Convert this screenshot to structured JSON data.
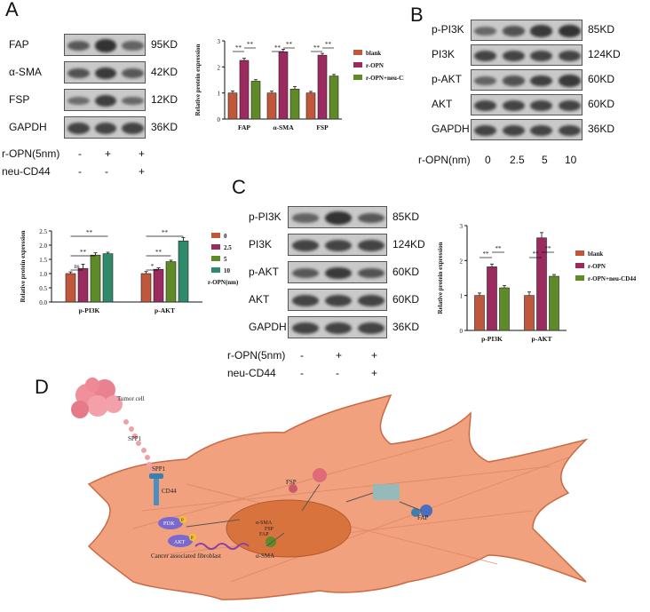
{
  "panels": {
    "A": "A",
    "B": "B",
    "C": "C",
    "D": "D"
  },
  "panelA": {
    "blots": [
      {
        "protein": "FAP",
        "size": "95KD",
        "intensity": [
          0.55,
          0.9,
          0.45
        ]
      },
      {
        "protein": "α-SMA",
        "size": "42KD",
        "intensity": [
          0.6,
          0.85,
          0.55
        ]
      },
      {
        "protein": "FSP",
        "size": "12KD",
        "intensity": [
          0.35,
          0.8,
          0.4
        ]
      },
      {
        "protein": "GAPDH",
        "size": "36KD",
        "intensity": [
          0.75,
          0.75,
          0.75
        ]
      }
    ],
    "conditions": [
      {
        "label": "r-OPN(5nm)",
        "marks": [
          "-",
          "+",
          "+"
        ]
      },
      {
        "label": "neu-CD44",
        "marks": [
          "-",
          "-",
          "+"
        ]
      }
    ]
  },
  "panelB": {
    "blots": [
      {
        "protein": "p-PI3K",
        "size": "85KD",
        "intensity": [
          0.4,
          0.6,
          0.85,
          0.9
        ]
      },
      {
        "protein": "PI3K",
        "size": "124KD",
        "intensity": [
          0.75,
          0.75,
          0.75,
          0.75
        ]
      },
      {
        "protein": "p-AKT",
        "size": "60KD",
        "intensity": [
          0.45,
          0.6,
          0.8,
          0.85
        ]
      },
      {
        "protein": "AKT",
        "size": "60KD",
        "intensity": [
          0.75,
          0.75,
          0.75,
          0.75
        ]
      },
      {
        "protein": "GAPDH",
        "size": "36KD",
        "intensity": [
          0.75,
          0.75,
          0.75,
          0.75
        ]
      }
    ],
    "xlabel": "r-OPN(nm)",
    "doses": [
      "0",
      "2.5",
      "5",
      "10"
    ]
  },
  "panelC": {
    "blots": [
      {
        "protein": "p-PI3K",
        "size": "85KD",
        "intensity": [
          0.45,
          0.9,
          0.55
        ]
      },
      {
        "protein": "PI3K",
        "size": "124KD",
        "intensity": [
          0.75,
          0.75,
          0.75
        ]
      },
      {
        "protein": "p-AKT",
        "size": "60KD",
        "intensity": [
          0.55,
          0.85,
          0.6
        ]
      },
      {
        "protein": "AKT",
        "size": "60KD",
        "intensity": [
          0.75,
          0.75,
          0.75
        ]
      },
      {
        "protein": "GAPDH",
        "size": "36KD",
        "intensity": [
          0.75,
          0.75,
          0.75
        ]
      }
    ],
    "conditions": [
      {
        "label": "r-OPN(5nm)",
        "marks": [
          "-",
          "+",
          "+"
        ]
      },
      {
        "label": "neu-CD44",
        "marks": [
          "-",
          "-",
          "+"
        ]
      }
    ]
  },
  "panelD": {
    "tumor_cell": "Tumor cell",
    "spp1": "SPP1",
    "receptor_ligand": "SPP1",
    "cd44": "CD44",
    "pi3k": "PI3K",
    "akt": "AKT",
    "p": "P",
    "fsp": "FSP",
    "asma": "α-SMA",
    "fap": "FAP",
    "nuc_asma": "α-SMA",
    "nuc_fsp": "FSP",
    "nuc_fap": "FAP",
    "caf": "Cancer associated fibroblast"
  },
  "chart_data": [
    {
      "type": "bar",
      "ylabel": "Relative protein expression",
      "categories": [
        "FAP",
        "α-SMA",
        "FSP"
      ],
      "series": [
        {
          "name": "blank",
          "values": [
            1.0,
            1.0,
            1.0
          ],
          "errors": [
            0.08,
            0.07,
            0.06
          ],
          "color": "#c0573a"
        },
        {
          "name": "r-OPN",
          "values": [
            2.25,
            2.58,
            2.45
          ],
          "errors": [
            0.08,
            0.1,
            0.07
          ],
          "color": "#9b2a5f"
        },
        {
          "name": "r-OPN+neu-CD44",
          "values": [
            1.45,
            1.15,
            1.65
          ],
          "errors": [
            0.06,
            0.1,
            0.06
          ],
          "color": "#5e8a28"
        }
      ],
      "ylim": [
        0,
        3
      ],
      "yticks": [
        "0",
        "1",
        "2",
        "3"
      ],
      "significance": [
        "**",
        "**",
        "**",
        "**",
        "**",
        "**"
      ],
      "legend": "right"
    },
    {
      "type": "bar",
      "ylabel": "Relative protein expression",
      "categories": [
        "p-PI3K",
        "p-AKT"
      ],
      "series": [
        {
          "name": "0",
          "values": [
            1.0,
            1.0
          ],
          "errors": [
            0.06,
            0.07
          ],
          "color": "#c0573a"
        },
        {
          "name": "2.5",
          "values": [
            1.18,
            1.15
          ],
          "errors": [
            0.15,
            0.05
          ],
          "color": "#9b2a5f"
        },
        {
          "name": "5",
          "values": [
            1.65,
            1.42
          ],
          "errors": [
            0.08,
            0.05
          ],
          "color": "#5e8a28"
        },
        {
          "name": "10",
          "values": [
            1.7,
            2.15
          ],
          "errors": [
            0.05,
            0.12
          ],
          "color": "#2e8a6a"
        }
      ],
      "legend_title": "r-OPN(nm)",
      "ylim": [
        0,
        2.5
      ],
      "yticks": [
        "0.0",
        "0.5",
        "1.0",
        "1.5",
        "2.0",
        "2.5"
      ],
      "significance": [
        "ns",
        "**",
        "**",
        "*",
        "**",
        "**"
      ],
      "legend": "right"
    },
    {
      "type": "bar",
      "ylabel": "Relative protein expression",
      "categories": [
        "p-PI3K",
        "p-AKT"
      ],
      "series": [
        {
          "name": "blank",
          "values": [
            1.0,
            1.0
          ],
          "errors": [
            0.07,
            0.1
          ],
          "color": "#c0573a"
        },
        {
          "name": "r-OPN",
          "values": [
            1.82,
            2.65
          ],
          "errors": [
            0.08,
            0.15
          ],
          "color": "#9b2a5f"
        },
        {
          "name": "r-OPN+neu-CD44",
          "values": [
            1.22,
            1.55
          ],
          "errors": [
            0.06,
            0.05
          ],
          "color": "#5e8a28"
        }
      ],
      "ylim": [
        0,
        3
      ],
      "yticks": [
        "0",
        "1",
        "2",
        "3"
      ],
      "significance": [
        "**",
        "**",
        "**",
        "**"
      ],
      "legend": "right"
    }
  ]
}
